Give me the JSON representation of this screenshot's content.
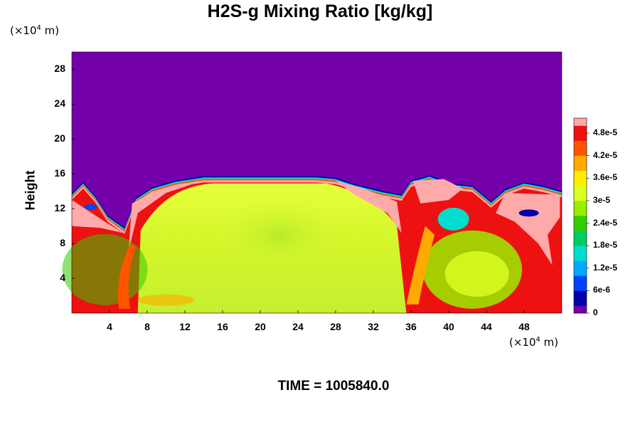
{
  "chart_data": {
    "type": "heatmap",
    "title": "H2S-g Mixing Ratio [kg/kg]",
    "xlabel": "",
    "ylabel": "Height",
    "x_unit_label": [
      "(×10",
      "4",
      " m)"
    ],
    "y_unit_label": [
      "(×10",
      "4",
      " m)"
    ],
    "xlim": [
      0,
      52
    ],
    "ylim": [
      0,
      30
    ],
    "x_ticks": [
      "4",
      "8",
      "12",
      "16",
      "20",
      "24",
      "28",
      "32",
      "36",
      "40",
      "44",
      "48"
    ],
    "y_ticks": [
      "4",
      "8",
      "12",
      "16",
      "20",
      "24",
      "28"
    ],
    "colorbar": {
      "min": 0,
      "max": 5.2e-05,
      "tick_labels": [
        "0",
        "6e-6",
        "1.2e-5",
        "1.8e-5",
        "2.4e-5",
        "3e-5",
        "3.6e-5",
        "4.2e-5",
        "4.8e-5"
      ],
      "colors": [
        "#7400aa",
        "#0000aa",
        "#0044ff",
        "#00aaff",
        "#00ddcc",
        "#00cc66",
        "#33cc00",
        "#99ee00",
        "#ddff22",
        "#ffee00",
        "#ffaa00",
        "#ff5500",
        "#ee1111",
        "#ffaaaa"
      ]
    },
    "background_value": 0,
    "tropopause_height_approx": 15.5,
    "lower_region_value_approx": 3.4e-05,
    "boundary_layer_value_approx": 5.2e-05
  },
  "footer": {
    "time_label": "TIME = 1005840.0"
  }
}
